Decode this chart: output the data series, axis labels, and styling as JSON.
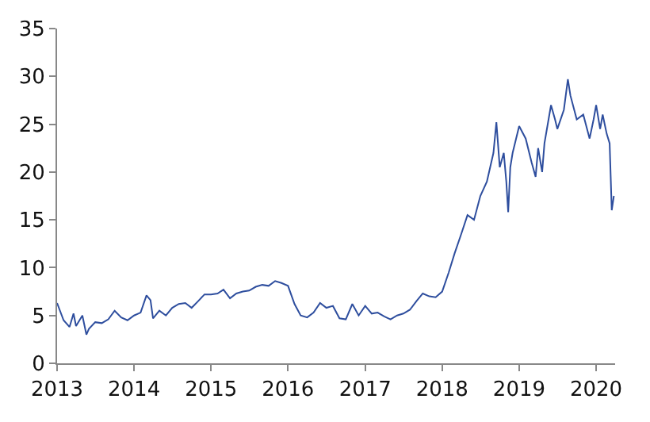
{
  "chart_data": {
    "type": "line",
    "x": [
      "2013-01-01",
      "2013-02-01",
      "2013-03-01",
      "2013-03-20",
      "2013-04-01",
      "2013-05-01",
      "2013-05-20",
      "2013-06-01",
      "2013-07-01",
      "2013-08-01",
      "2013-09-01",
      "2013-10-01",
      "2013-11-01",
      "2013-12-01",
      "2014-01-01",
      "2014-02-01",
      "2014-03-01",
      "2014-03-20",
      "2014-04-01",
      "2014-05-01",
      "2014-06-01",
      "2014-07-01",
      "2014-08-01",
      "2014-09-01",
      "2014-10-01",
      "2014-11-01",
      "2014-12-01",
      "2015-01-01",
      "2015-02-01",
      "2015-03-01",
      "2015-04-01",
      "2015-05-01",
      "2015-06-01",
      "2015-07-01",
      "2015-08-01",
      "2015-09-01",
      "2015-10-01",
      "2015-11-01",
      "2015-12-01",
      "2016-01-01",
      "2016-02-01",
      "2016-03-01",
      "2016-04-01",
      "2016-05-01",
      "2016-06-01",
      "2016-07-01",
      "2016-08-01",
      "2016-09-01",
      "2016-10-01",
      "2016-11-01",
      "2016-12-01",
      "2017-01-01",
      "2017-02-01",
      "2017-03-01",
      "2017-04-01",
      "2017-05-01",
      "2017-06-01",
      "2017-07-01",
      "2017-08-01",
      "2017-09-01",
      "2017-10-01",
      "2017-11-01",
      "2017-12-01",
      "2018-01-01",
      "2018-02-01",
      "2018-03-01",
      "2018-04-01",
      "2018-05-01",
      "2018-06-01",
      "2018-07-01",
      "2018-08-01",
      "2018-09-01",
      "2018-09-15",
      "2018-10-01",
      "2018-10-20",
      "2018-11-01",
      "2018-11-10",
      "2018-11-20",
      "2018-12-01",
      "2019-01-01",
      "2019-02-01",
      "2019-03-01",
      "2019-03-20",
      "2019-04-01",
      "2019-04-20",
      "2019-05-01",
      "2019-06-01",
      "2019-06-20",
      "2019-07-01",
      "2019-08-01",
      "2019-08-20",
      "2019-09-01",
      "2019-10-01",
      "2019-11-01",
      "2019-12-01",
      "2019-12-20",
      "2020-01-01",
      "2020-01-20",
      "2020-02-01",
      "2020-02-20",
      "2020-03-05",
      "2020-03-15",
      "2020-03-25"
    ],
    "series": [
      {
        "color": "#2e4e9e",
        "values": [
          6.3,
          4.5,
          3.8,
          5.2,
          3.9,
          5.0,
          3.0,
          3.6,
          4.3,
          4.2,
          4.6,
          5.5,
          4.8,
          4.5,
          5.0,
          5.3,
          7.1,
          6.6,
          4.7,
          5.5,
          5.0,
          5.8,
          6.2,
          6.3,
          5.8,
          6.5,
          7.2,
          7.2,
          7.3,
          7.7,
          6.8,
          7.3,
          7.5,
          7.6,
          8.0,
          8.2,
          8.1,
          8.6,
          8.4,
          8.1,
          6.2,
          5.0,
          4.8,
          5.3,
          6.3,
          5.8,
          6.0,
          4.7,
          4.6,
          6.2,
          5.0,
          6.0,
          5.2,
          5.3,
          4.9,
          4.6,
          5.0,
          5.2,
          5.6,
          6.5,
          7.3,
          7.0,
          6.9,
          7.5,
          9.5,
          11.5,
          13.5,
          15.5,
          15.0,
          17.5,
          19.0,
          22.0,
          25.2,
          20.5,
          22.0,
          19.0,
          15.8,
          20.5,
          22.0,
          24.8,
          23.5,
          21.0,
          19.5,
          22.5,
          20.0,
          23.0,
          27.0,
          25.5,
          24.5,
          26.5,
          29.7,
          28.0,
          25.5,
          26.0,
          23.5,
          25.5,
          27.0,
          24.5,
          26.0,
          24.0,
          23.0,
          16.0,
          17.5
        ]
      }
    ],
    "xlim": [
      "2013-01-01",
      "2020-03-31"
    ],
    "xticks": [
      {
        "value": "2013-01-01",
        "label": "2013"
      },
      {
        "value": "2014-01-01",
        "label": "2014"
      },
      {
        "value": "2015-01-01",
        "label": "2015"
      },
      {
        "value": "2016-01-01",
        "label": "2016"
      },
      {
        "value": "2017-01-01",
        "label": "2017"
      },
      {
        "value": "2018-01-01",
        "label": "2018"
      },
      {
        "value": "2019-01-01",
        "label": "2019"
      },
      {
        "value": "2020-01-01",
        "label": "2020"
      }
    ],
    "ylim": [
      0,
      35
    ],
    "yticks": [
      0,
      5,
      10,
      15,
      20,
      25,
      30,
      35
    ],
    "marker": "none",
    "line_style": "solid"
  }
}
